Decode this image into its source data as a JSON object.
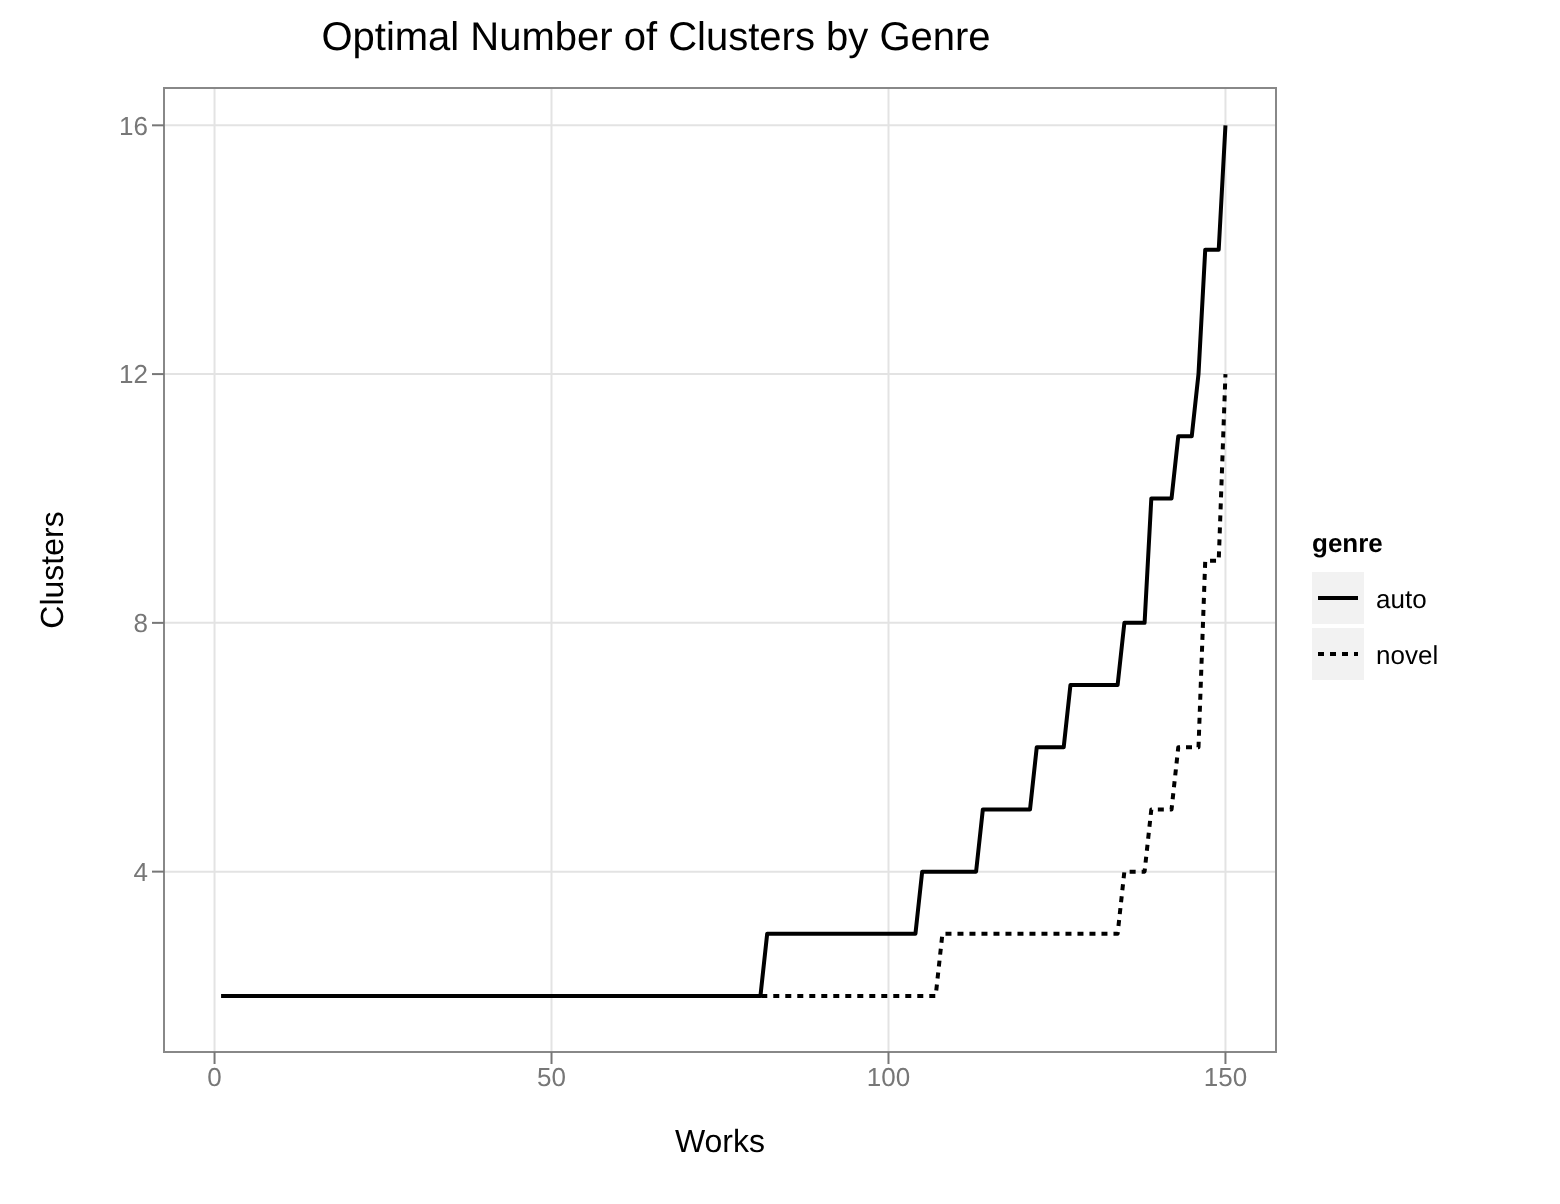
{
  "chart_data": {
    "type": "line",
    "title": "Optimal Number of Clusters by Genre",
    "xlabel": "Works",
    "ylabel": "Clusters",
    "legend_title": "genre",
    "legend": "right",
    "grid": true,
    "xlim": [
      -7.5,
      157.5
    ],
    "xticks": [
      0,
      50,
      100,
      150
    ],
    "ylim": [
      1.1,
      16.6
    ],
    "yticks": [
      4,
      8,
      12,
      16
    ],
    "series": [
      {
        "name": "auto",
        "color": "#000000",
        "line_style": "solid",
        "x": [
          1,
          81,
          82,
          104,
          105,
          113,
          114,
          121,
          122,
          126,
          127,
          134,
          135,
          138,
          139,
          142,
          143,
          145,
          146,
          147,
          148,
          149,
          150
        ],
        "values": [
          2,
          2,
          3,
          3,
          4,
          4,
          5,
          5,
          6,
          6,
          7,
          7,
          8,
          8,
          10,
          10,
          11,
          11,
          12,
          14,
          14,
          14,
          16
        ]
      },
      {
        "name": "novel",
        "color": "#000000",
        "line_style": "dotted",
        "x": [
          1,
          107,
          108,
          134,
          135,
          138,
          139,
          142,
          143,
          146,
          147,
          149,
          150
        ],
        "values": [
          2,
          2,
          3,
          3,
          4,
          4,
          5,
          5,
          6,
          6,
          9,
          9,
          12
        ]
      }
    ]
  }
}
